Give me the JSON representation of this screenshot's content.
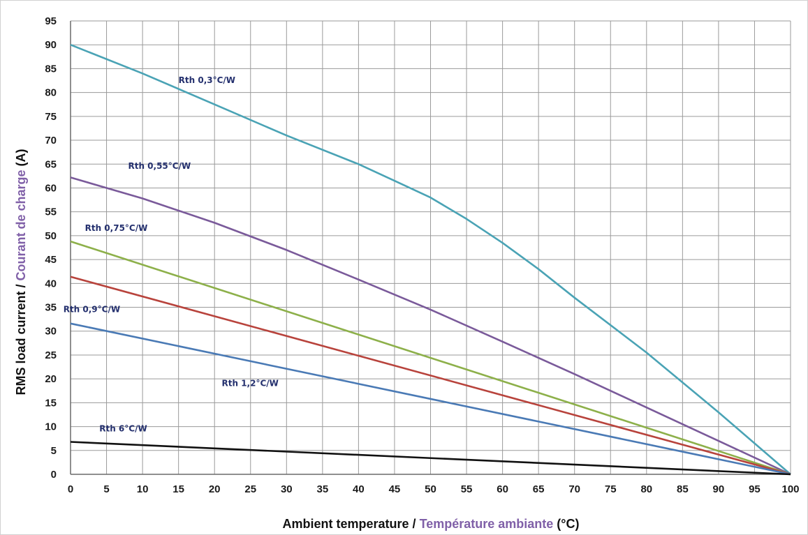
{
  "chart_data": {
    "type": "line",
    "xlabel_en": "Ambient temperature / ",
    "xlabel_fr": "Température ambiante",
    "xlabel_unit": " (°C)",
    "ylabel_en": "RMS load current / ",
    "ylabel_fr": "Courant de charge",
    "ylabel_unit": " (A)",
    "xlim": [
      0,
      100
    ],
    "ylim": [
      0,
      95
    ],
    "xticks": [
      0,
      5,
      10,
      15,
      20,
      25,
      30,
      35,
      40,
      45,
      50,
      55,
      60,
      65,
      70,
      75,
      80,
      85,
      90,
      95,
      100
    ],
    "yticks": [
      0,
      5,
      10,
      15,
      20,
      25,
      30,
      35,
      40,
      45,
      50,
      55,
      60,
      65,
      70,
      75,
      80,
      85,
      90,
      95
    ],
    "grid": true,
    "series": [
      {
        "name": "Rth 0,3°C/W",
        "color": "#4aa3b5",
        "label_pos": [
          15,
          82
        ],
        "x": [
          0,
          10,
          20,
          30,
          40,
          45,
          50,
          55,
          60,
          65,
          70,
          80,
          90,
          100
        ],
        "y": [
          90,
          84,
          77.5,
          71,
          65,
          61.5,
          58,
          53.5,
          48.5,
          43,
          37,
          25.5,
          13,
          0
        ]
      },
      {
        "name": "Rth 0,55°C/W",
        "color": "#7a5a9a",
        "label_pos": [
          8,
          64
        ],
        "x": [
          0,
          10,
          20,
          30,
          40,
          50,
          60,
          70,
          80,
          90,
          100
        ],
        "y": [
          62.2,
          57.8,
          52.7,
          47,
          40.8,
          34.5,
          27.8,
          21,
          14,
          7,
          0
        ]
      },
      {
        "name": "Rth 0,75°C/W",
        "color": "#8db04a",
        "label_pos": [
          2,
          51
        ],
        "x": [
          0,
          100
        ],
        "y": [
          48.8,
          0
        ]
      },
      {
        "name": "",
        "color": "#b8433c",
        "label_pos": null,
        "x": [
          0,
          100
        ],
        "y": [
          41.4,
          0
        ]
      },
      {
        "name": "Rth 0,9°C/W",
        "color": "#4a7ab5",
        "label_pos": [
          -1,
          34
        ],
        "x": [
          0,
          100
        ],
        "y": [
          31.6,
          0
        ]
      },
      {
        "name": "Rth 1,2°C/W",
        "color": "#4a7ab5",
        "label_pos": [
          21,
          18.5
        ],
        "x": [],
        "y": []
      },
      {
        "name": "Rth 6°C/W",
        "color": "#111111",
        "label_pos": [
          4,
          9
        ],
        "x": [
          0,
          100
        ],
        "y": [
          6.8,
          0
        ]
      }
    ]
  }
}
